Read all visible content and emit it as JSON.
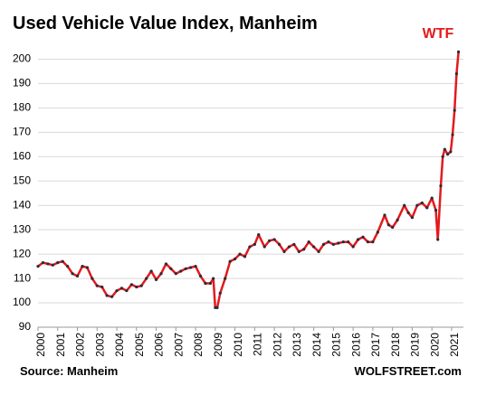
{
  "chart_data": {
    "type": "line",
    "title": "Used Vehicle Value Index, Manheim",
    "annotation": "WTF",
    "source": "Source: Manheim",
    "credit": "WOLFSTREET.com",
    "series": [
      {
        "name": "Used Vehicle Value Index",
        "color": "#e31a1c",
        "marker_color": "#2b2b3a",
        "x": [
          2000.0,
          2000.25,
          2000.5,
          2000.75,
          2001.0,
          2001.25,
          2001.5,
          2001.75,
          2002.0,
          2002.25,
          2002.5,
          2002.75,
          2003.0,
          2003.25,
          2003.5,
          2003.75,
          2004.0,
          2004.25,
          2004.5,
          2004.75,
          2005.0,
          2005.25,
          2005.5,
          2005.75,
          2006.0,
          2006.25,
          2006.5,
          2006.75,
          2007.0,
          2007.25,
          2007.5,
          2007.75,
          2008.0,
          2008.25,
          2008.5,
          2008.75,
          2008.9,
          2009.0,
          2009.1,
          2009.25,
          2009.5,
          2009.75,
          2010.0,
          2010.25,
          2010.5,
          2010.75,
          2011.0,
          2011.2,
          2011.5,
          2011.75,
          2012.0,
          2012.25,
          2012.5,
          2012.75,
          2013.0,
          2013.25,
          2013.5,
          2013.75,
          2014.0,
          2014.25,
          2014.5,
          2014.75,
          2015.0,
          2015.25,
          2015.5,
          2015.75,
          2016.0,
          2016.25,
          2016.5,
          2016.75,
          2017.0,
          2017.25,
          2017.6,
          2017.8,
          2018.0,
          2018.25,
          2018.6,
          2018.8,
          2019.0,
          2019.25,
          2019.5,
          2019.75,
          2020.0,
          2020.2,
          2020.3,
          2020.45,
          2020.55,
          2020.65,
          2020.8,
          2020.95,
          2021.05,
          2021.15,
          2021.25,
          2021.35
        ],
        "values": [
          115,
          116.5,
          116,
          115.5,
          116.5,
          117,
          115,
          112,
          111,
          115,
          114.5,
          110,
          107,
          106.5,
          103,
          102.5,
          105,
          106,
          105,
          107.5,
          106.5,
          107,
          110,
          113,
          109.5,
          112,
          116,
          114,
          112,
          113,
          114,
          114.5,
          115,
          111,
          108,
          108,
          110,
          98,
          98,
          104,
          110,
          117,
          118,
          120,
          119,
          123,
          124,
          128,
          123,
          125.5,
          126,
          124,
          121,
          123,
          124,
          121,
          122,
          125,
          123,
          121,
          124,
          125,
          124,
          124.5,
          125,
          125,
          123,
          126,
          127,
          125,
          125,
          129,
          136,
          132,
          131,
          134,
          140,
          137,
          135,
          140,
          141,
          139,
          143,
          138,
          126,
          148,
          160,
          163,
          161,
          162,
          169,
          179,
          194,
          203
        ]
      }
    ],
    "xlim": [
      2000,
      2021.6
    ],
    "xticks": [
      2000,
      2001,
      2002,
      2003,
      2004,
      2005,
      2006,
      2007,
      2008,
      2009,
      2010,
      2011,
      2012,
      2013,
      2014,
      2015,
      2016,
      2017,
      2018,
      2019,
      2020,
      2021
    ],
    "ylim": [
      90,
      205
    ],
    "yticks": [
      90,
      100,
      110,
      120,
      130,
      140,
      150,
      160,
      170,
      180,
      190,
      200
    ],
    "grid": true
  }
}
